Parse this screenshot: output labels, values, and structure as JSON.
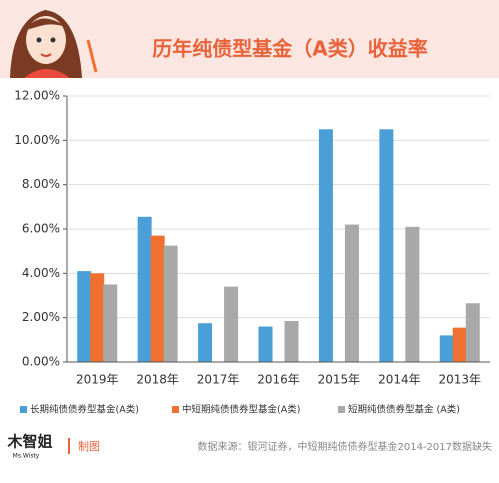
{
  "chart_data": {
    "type": "bar",
    "title": "历年纯债型基金（A类）收益率",
    "categories": [
      "2019年",
      "2018年",
      "2017年",
      "2016年",
      "2015年",
      "2014年",
      "2013年"
    ],
    "series": [
      {
        "name": "长期纯债债券型基金(A类)",
        "color": "#4a9fd8",
        "values": [
          4.1,
          6.55,
          1.75,
          1.6,
          10.5,
          10.5,
          1.2
        ]
      },
      {
        "name": "中短期纯债债券型基金(A类)",
        "color": "#f07030",
        "values": [
          4.0,
          5.7,
          null,
          null,
          null,
          null,
          1.55
        ]
      },
      {
        "name": "短期纯债债券型基金 (A类)",
        "color": "#a9a9a9",
        "values": [
          3.5,
          5.25,
          3.4,
          1.85,
          6.2,
          6.1,
          2.65
        ]
      }
    ],
    "ylim": [
      0,
      12
    ],
    "yticks": [
      {
        "value": 0,
        "label": "0.00%"
      },
      {
        "value": 2,
        "label": "2.00%"
      },
      {
        "value": 4,
        "label": "4.00%"
      },
      {
        "value": 6,
        "label": "6.00%"
      },
      {
        "value": 8,
        "label": "8.00%"
      },
      {
        "value": 10,
        "label": "10.00%"
      },
      {
        "value": 12,
        "label": "12.00%"
      }
    ],
    "grid": true,
    "logo": "木智姐",
    "logo_sub": "Ms.Wisty",
    "credit": "制图",
    "source": "数据来源：银河证券，中短期纯债债券型基金2014-2017数据缺失"
  }
}
